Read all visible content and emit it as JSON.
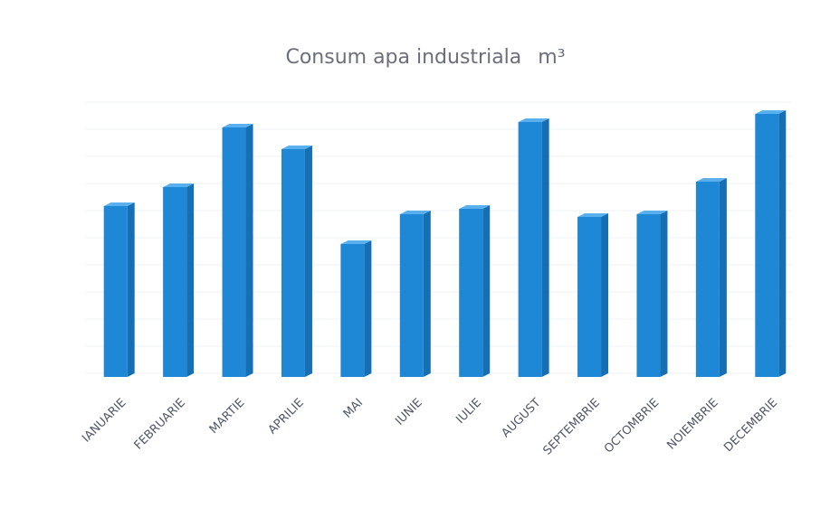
{
  "chart_data": {
    "type": "bar",
    "title": "Consum apa industriala",
    "title_unit": "m³",
    "categories": [
      "IANUARIE",
      "FEBRUARIE",
      "MARTIE",
      "APRILIE",
      "MAI",
      "IUNIE",
      "IULIE",
      "AUGUST",
      "SEPTEMBRIE",
      "OCTOMBRIE",
      "NOIEMBRIE",
      "DECEMBRIE"
    ],
    "values": [
      6.3,
      7.0,
      9.2,
      8.4,
      4.9,
      6.0,
      6.2,
      9.4,
      5.9,
      6.0,
      7.2,
      9.7
    ],
    "ylim": [
      0,
      10
    ],
    "grid": true,
    "legend": "none",
    "bar_color": "#1f88d6",
    "bar_top_color": "#5ab0ee",
    "bar_side_color": "#166fb3"
  }
}
